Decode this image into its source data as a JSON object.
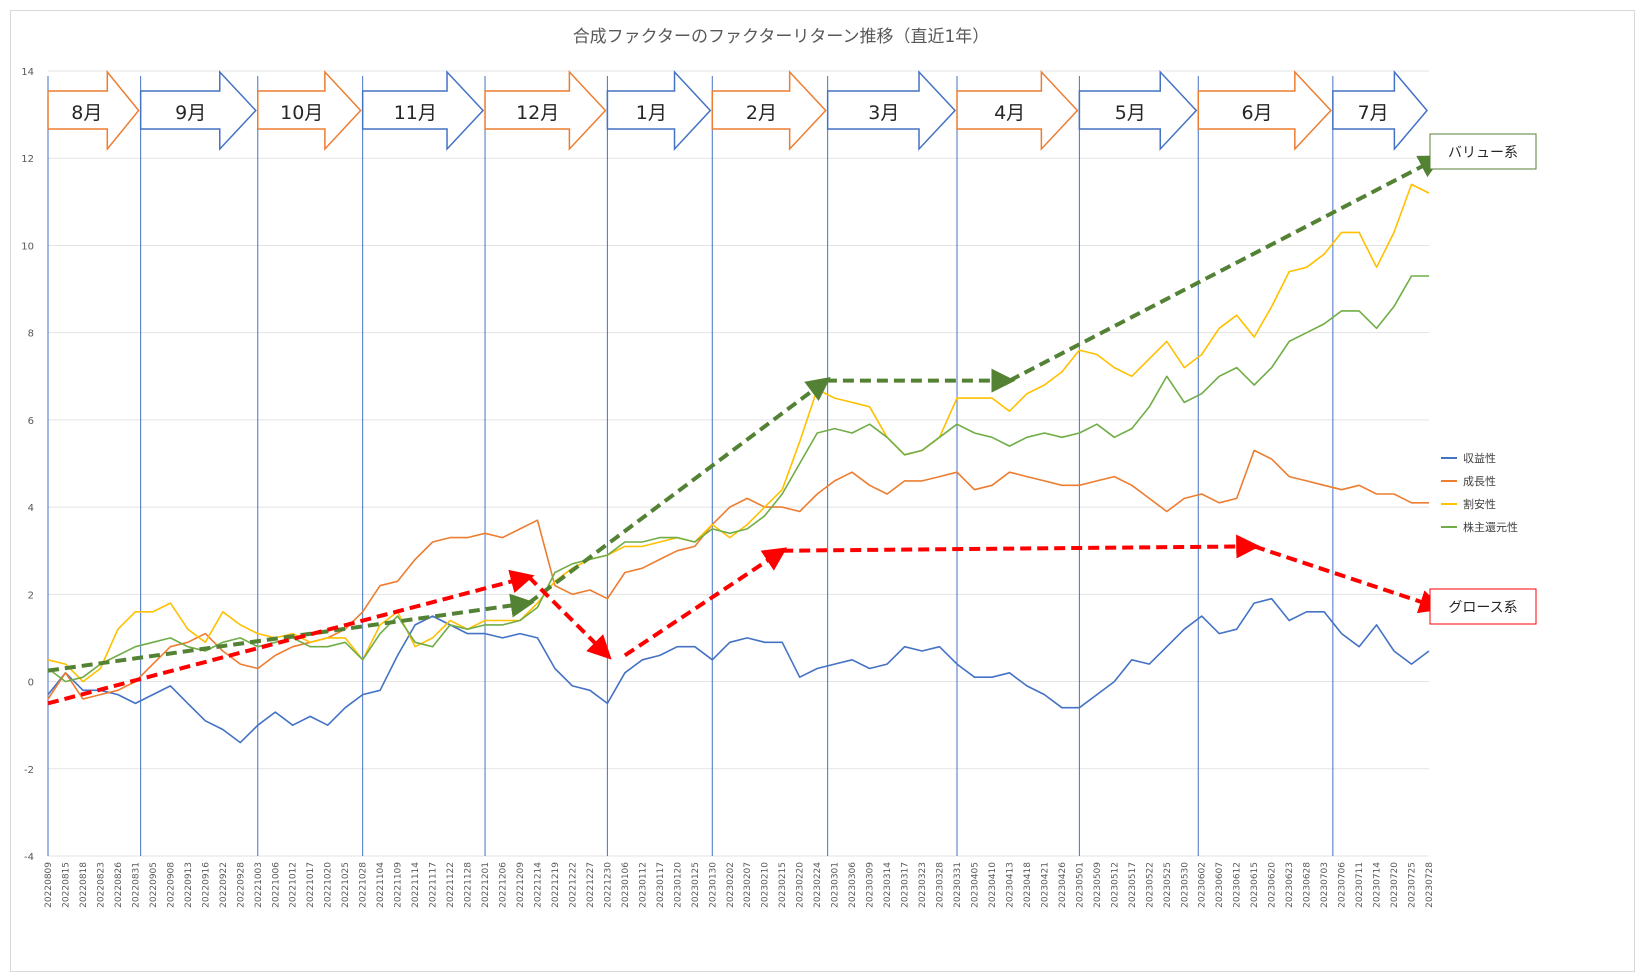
{
  "chart_data": {
    "type": "line",
    "title": "合成ファクターのファクターリターン推移（直近1年）",
    "ylim": [
      -4,
      14
    ],
    "yticks": [
      -4,
      -2,
      0,
      2,
      4,
      6,
      8,
      10,
      12,
      14
    ],
    "xlabels": [
      "20220809",
      "20220815",
      "20220818",
      "20220823",
      "20220826",
      "20220831",
      "20220905",
      "20220908",
      "20220913",
      "20220916",
      "20220922",
      "20220928",
      "20221003",
      "20221006",
      "20221012",
      "20221017",
      "20221020",
      "20221025",
      "20221028",
      "20221104",
      "20221109",
      "20221114",
      "20221117",
      "20221122",
      "20221128",
      "20221201",
      "20221206",
      "20221209",
      "20221214",
      "20221219",
      "20221222",
      "20221227",
      "20221230",
      "20230106",
      "20230112",
      "20230117",
      "20230120",
      "20230125",
      "20230130",
      "20230202",
      "20230207",
      "20230210",
      "20230215",
      "20230220",
      "20230224",
      "20230301",
      "20230306",
      "20230309",
      "20230314",
      "20230317",
      "20230323",
      "20230328",
      "20230331",
      "20230405",
      "20230410",
      "20230413",
      "20230418",
      "20230421",
      "20230426",
      "20230501",
      "20230509",
      "20230512",
      "20230517",
      "20230522",
      "20230525",
      "20230530",
      "20230602",
      "20230607",
      "20230612",
      "20230615",
      "20230620",
      "20230623",
      "20230628",
      "20230703",
      "20230706",
      "20230711",
      "20230714",
      "20230720",
      "20230725",
      "20230728"
    ],
    "month_boundaries": [
      0,
      5.3,
      12,
      18,
      25,
      32,
      38,
      44.6,
      52,
      59,
      65.8,
      73.5
    ],
    "months": [
      {
        "label": "8月",
        "color": "#ed7d31"
      },
      {
        "label": "9月",
        "color": "#4472c4"
      },
      {
        "label": "10月",
        "color": "#ed7d31"
      },
      {
        "label": "11月",
        "color": "#4472c4"
      },
      {
        "label": "12月",
        "color": "#ed7d31"
      },
      {
        "label": "1月",
        "color": "#4472c4"
      },
      {
        "label": "2月",
        "color": "#ed7d31"
      },
      {
        "label": "3月",
        "color": "#4472c4"
      },
      {
        "label": "4月",
        "color": "#ed7d31"
      },
      {
        "label": "5月",
        "color": "#4472c4"
      },
      {
        "label": "6月",
        "color": "#ed7d31"
      },
      {
        "label": "7月",
        "color": "#4472c4"
      }
    ],
    "series": [
      {
        "name": "収益性",
        "color": "#4472c4",
        "values": [
          -0.3,
          0.2,
          -0.2,
          -0.2,
          -0.3,
          -0.5,
          -0.3,
          -0.1,
          -0.5,
          -0.9,
          -1.1,
          -1.4,
          -1.0,
          -0.7,
          -1.0,
          -0.8,
          -1.0,
          -0.6,
          -0.3,
          -0.2,
          0.6,
          1.3,
          1.5,
          1.3,
          1.1,
          1.1,
          1.0,
          1.1,
          1.0,
          0.3,
          -0.1,
          -0.2,
          -0.5,
          0.2,
          0.5,
          0.6,
          0.8,
          0.8,
          0.5,
          0.9,
          1.0,
          0.9,
          0.9,
          0.1,
          0.3,
          0.4,
          0.5,
          0.3,
          0.4,
          0.8,
          0.7,
          0.8,
          0.4,
          0.1,
          0.1,
          0.2,
          -0.1,
          -0.3,
          -0.6,
          -0.6,
          -0.3,
          0.0,
          0.5,
          0.4,
          0.8,
          1.2,
          1.5,
          1.1,
          1.2,
          1.8,
          1.9,
          1.4,
          1.6,
          1.6,
          1.1,
          0.8,
          1.3,
          0.7,
          0.4,
          0.7
        ]
      },
      {
        "name": "成長性",
        "color": "#ed7d31",
        "values": [
          -0.4,
          0.2,
          -0.4,
          -0.3,
          -0.2,
          0.0,
          0.4,
          0.8,
          0.9,
          1.1,
          0.7,
          0.4,
          0.3,
          0.6,
          0.8,
          0.9,
          1.0,
          1.2,
          1.6,
          2.2,
          2.3,
          2.8,
          3.2,
          3.3,
          3.3,
          3.4,
          3.3,
          3.5,
          3.7,
          2.2,
          2.0,
          2.1,
          1.9,
          2.5,
          2.6,
          2.8,
          3.0,
          3.1,
          3.6,
          4.0,
          4.2,
          4.0,
          4.0,
          3.9,
          4.3,
          4.6,
          4.8,
          4.5,
          4.3,
          4.6,
          4.6,
          4.7,
          4.8,
          4.4,
          4.5,
          4.8,
          4.7,
          4.6,
          4.5,
          4.5,
          4.6,
          4.7,
          4.5,
          4.2,
          3.9,
          4.2,
          4.3,
          4.1,
          4.2,
          5.3,
          5.1,
          4.7,
          4.6,
          4.5,
          4.4,
          4.5,
          4.3,
          4.3,
          4.1,
          4.1
        ]
      },
      {
        "name": "割安性",
        "color": "#ffc000",
        "values": [
          0.5,
          0.4,
          0.0,
          0.3,
          1.2,
          1.6,
          1.6,
          1.8,
          1.2,
          0.9,
          1.6,
          1.3,
          1.1,
          1.0,
          1.1,
          0.9,
          1.0,
          1.0,
          0.5,
          1.3,
          1.6,
          0.8,
          1.0,
          1.4,
          1.2,
          1.4,
          1.4,
          1.4,
          1.8,
          2.3,
          2.6,
          2.8,
          2.9,
          3.1,
          3.1,
          3.2,
          3.3,
          3.2,
          3.6,
          3.3,
          3.6,
          4.0,
          4.4,
          5.5,
          6.7,
          6.5,
          6.4,
          6.3,
          5.6,
          5.2,
          5.3,
          5.6,
          6.5,
          6.5,
          6.5,
          6.2,
          6.6,
          6.8,
          7.1,
          7.6,
          7.5,
          7.2,
          7.0,
          7.4,
          7.8,
          7.2,
          7.5,
          8.1,
          8.4,
          7.9,
          8.6,
          9.4,
          9.5,
          9.8,
          10.3,
          10.3,
          9.5,
          10.3,
          11.4,
          11.2
        ]
      },
      {
        "name": "株主還元性",
        "color": "#70ad47",
        "values": [
          0.3,
          0.0,
          0.1,
          0.4,
          0.6,
          0.8,
          0.9,
          1.0,
          0.8,
          0.7,
          0.9,
          1.0,
          0.8,
          0.9,
          1.0,
          0.8,
          0.8,
          0.9,
          0.5,
          1.1,
          1.5,
          0.9,
          0.8,
          1.3,
          1.2,
          1.3,
          1.3,
          1.4,
          1.7,
          2.5,
          2.7,
          2.8,
          2.9,
          3.2,
          3.2,
          3.3,
          3.3,
          3.2,
          3.5,
          3.4,
          3.5,
          3.8,
          4.3,
          5.0,
          5.7,
          5.8,
          5.7,
          5.9,
          5.6,
          5.2,
          5.3,
          5.6,
          5.9,
          5.7,
          5.6,
          5.4,
          5.6,
          5.7,
          5.6,
          5.7,
          5.9,
          5.6,
          5.8,
          6.3,
          7.0,
          6.4,
          6.6,
          7.0,
          7.2,
          6.8,
          7.2,
          7.8,
          8.0,
          8.2,
          8.5,
          8.5,
          8.1,
          8.6,
          9.3,
          9.3
        ]
      }
    ],
    "legend_position": "right",
    "annotations": {
      "value_label": "バリュー系",
      "growth_label": "グロース系",
      "value_color": "#548235",
      "growth_color": "#ff0000"
    },
    "trend_arrows": {
      "value": [
        [
          0,
          0.25
        ],
        [
          27.5,
          1.8
        ],
        [
          27.5,
          1.8
        ],
        [
          44.5,
          6.9
        ],
        [
          44.5,
          6.9
        ],
        [
          55.0,
          6.9
        ],
        [
          55.0,
          6.9
        ],
        [
          79.5,
          12.0
        ]
      ],
      "growth": [
        [
          0,
          -0.5
        ],
        [
          27.5,
          2.4
        ],
        [
          27.5,
          2.4
        ],
        [
          32.0,
          0.6
        ],
        [
          33.0,
          0.6
        ],
        [
          42.0,
          3.0
        ],
        [
          42.0,
          3.0
        ],
        [
          69.0,
          3.1
        ],
        [
          69.0,
          3.1
        ],
        [
          79.5,
          1.7
        ]
      ]
    }
  }
}
